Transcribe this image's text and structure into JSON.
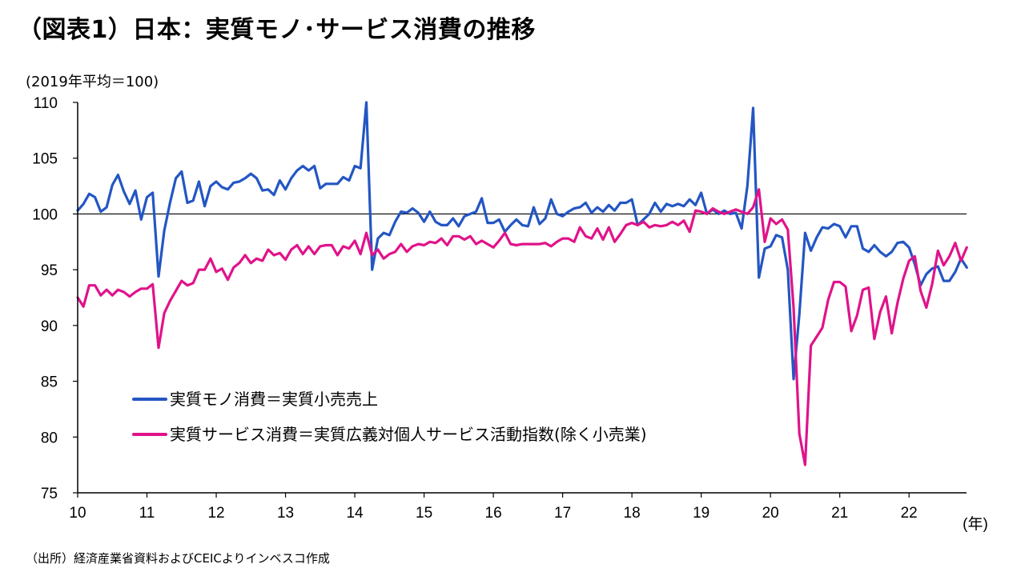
{
  "title": "（図表1）日本：実質モノ･サービス消費の推移",
  "unit_label": "(2019年平均＝100)",
  "source": "（出所）経済産業省資料およびCEICよりインベスコ作成",
  "colors": {
    "goods": "#2456c3",
    "services": "#e0138a",
    "reference": "#000000",
    "axis": "#000000"
  },
  "chart_data": {
    "type": "line",
    "title": "",
    "xlabel": "(年)",
    "ylabel": "(2019年平均＝100)",
    "ylim": [
      75,
      110
    ],
    "yticks": [
      110,
      105,
      100,
      95,
      90,
      85,
      80,
      75
    ],
    "xlim": [
      2010,
      2022.83
    ],
    "xticks": [
      {
        "x": 2010,
        "label": "10"
      },
      {
        "x": 2011,
        "label": "11"
      },
      {
        "x": 2012,
        "label": "12"
      },
      {
        "x": 2013,
        "label": "13"
      },
      {
        "x": 2014,
        "label": "14"
      },
      {
        "x": 2015,
        "label": "15"
      },
      {
        "x": 2016,
        "label": "16"
      },
      {
        "x": 2017,
        "label": "17"
      },
      {
        "x": 2018,
        "label": "18"
      },
      {
        "x": 2019,
        "label": "19"
      },
      {
        "x": 2020,
        "label": "20"
      },
      {
        "x": 2021,
        "label": "21"
      },
      {
        "x": 2022,
        "label": "22"
      }
    ],
    "reference_line": 100,
    "grid": false,
    "legend_position": "lower-left",
    "series": [
      {
        "name": "実質モノ消費＝実質小売売上",
        "color": "#2456c3",
        "x": [
          2010.0,
          2010.083,
          2010.167,
          2010.25,
          2010.333,
          2010.417,
          2010.5,
          2010.583,
          2010.667,
          2010.75,
          2010.833,
          2010.917,
          2011.0,
          2011.083,
          2011.167,
          2011.25,
          2011.333,
          2011.417,
          2011.5,
          2011.583,
          2011.667,
          2011.75,
          2011.833,
          2011.917,
          2012.0,
          2012.083,
          2012.167,
          2012.25,
          2012.333,
          2012.417,
          2012.5,
          2012.583,
          2012.667,
          2012.75,
          2012.833,
          2012.917,
          2013.0,
          2013.083,
          2013.167,
          2013.25,
          2013.333,
          2013.417,
          2013.5,
          2013.583,
          2013.667,
          2013.75,
          2013.833,
          2013.917,
          2014.0,
          2014.083,
          2014.167,
          2014.25,
          2014.333,
          2014.417,
          2014.5,
          2014.583,
          2014.667,
          2014.75,
          2014.833,
          2014.917,
          2015.0,
          2015.083,
          2015.167,
          2015.25,
          2015.333,
          2015.417,
          2015.5,
          2015.583,
          2015.667,
          2015.75,
          2015.833,
          2015.917,
          2016.0,
          2016.083,
          2016.167,
          2016.25,
          2016.333,
          2016.417,
          2016.5,
          2016.583,
          2016.667,
          2016.75,
          2016.833,
          2016.917,
          2017.0,
          2017.083,
          2017.167,
          2017.25,
          2017.333,
          2017.417,
          2017.5,
          2017.583,
          2017.667,
          2017.75,
          2017.833,
          2017.917,
          2018.0,
          2018.083,
          2018.167,
          2018.25,
          2018.333,
          2018.417,
          2018.5,
          2018.583,
          2018.667,
          2018.75,
          2018.833,
          2018.917,
          2019.0,
          2019.083,
          2019.167,
          2019.25,
          2019.333,
          2019.417,
          2019.5,
          2019.583,
          2019.667,
          2019.75,
          2019.833,
          2019.917,
          2020.0,
          2020.083,
          2020.167,
          2020.25,
          2020.333,
          2020.417,
          2020.5,
          2020.583,
          2020.667,
          2020.75,
          2020.833,
          2020.917,
          2021.0,
          2021.083,
          2021.167,
          2021.25,
          2021.333,
          2021.417,
          2021.5,
          2021.583,
          2021.667,
          2021.75,
          2021.833,
          2021.917,
          2022.0,
          2022.083,
          2022.167,
          2022.25,
          2022.333,
          2022.417,
          2022.5,
          2022.583,
          2022.667,
          2022.75,
          2022.833
        ],
        "y": [
          100.3,
          100.9,
          101.8,
          101.5,
          100.2,
          100.6,
          102.6,
          103.5,
          102.0,
          100.9,
          102.1,
          99.5,
          101.5,
          101.9,
          94.4,
          98.5,
          101.0,
          103.2,
          103.8,
          101.0,
          101.2,
          102.9,
          100.7,
          102.5,
          102.9,
          102.4,
          102.2,
          102.8,
          102.9,
          103.2,
          103.6,
          103.2,
          102.1,
          102.2,
          101.7,
          103.0,
          102.2,
          103.2,
          103.9,
          104.3,
          103.9,
          104.3,
          102.3,
          102.7,
          102.7,
          102.7,
          103.3,
          103.0,
          104.3,
          104.1,
          110.0,
          95.0,
          97.8,
          98.3,
          98.1,
          99.3,
          100.2,
          100.1,
          100.5,
          100.1,
          99.3,
          100.2,
          99.3,
          99.0,
          99.0,
          99.6,
          98.9,
          99.8,
          100.0,
          100.2,
          101.4,
          99.2,
          99.2,
          99.5,
          98.4,
          99.0,
          99.5,
          99.0,
          98.9,
          100.6,
          99.1,
          99.6,
          101.3,
          100.0,
          99.8,
          100.2,
          100.5,
          100.6,
          101.0,
          100.1,
          100.6,
          100.2,
          100.8,
          100.3,
          101.0,
          101.0,
          101.3,
          99.0,
          99.5,
          100.0,
          101.0,
          100.2,
          100.9,
          100.7,
          100.9,
          100.7,
          101.3,
          100.8,
          101.9,
          100.0,
          100.4,
          100.0,
          100.3,
          100.0,
          100.1,
          98.7,
          102.5,
          109.5,
          94.3,
          96.9,
          97.1,
          98.1,
          97.9,
          95.0,
          85.2,
          91.0,
          98.3,
          96.7,
          97.9,
          98.8,
          98.7,
          99.1,
          98.9,
          97.9,
          98.9,
          98.9,
          96.9,
          96.6,
          97.2,
          96.6,
          96.2,
          96.6,
          97.4,
          97.5,
          97.0,
          95.5,
          93.6,
          94.6,
          95.1,
          95.3,
          94.0,
          94.0,
          94.8,
          96.0,
          95.2
        ]
      },
      {
        "name": "実質サービス消費＝実質広義対個人サービス活動指数(除く小売業)",
        "color": "#e0138a",
        "x": [
          2010.0,
          2010.083,
          2010.167,
          2010.25,
          2010.333,
          2010.417,
          2010.5,
          2010.583,
          2010.667,
          2010.75,
          2010.833,
          2010.917,
          2011.0,
          2011.083,
          2011.167,
          2011.25,
          2011.333,
          2011.417,
          2011.5,
          2011.583,
          2011.667,
          2011.75,
          2011.833,
          2011.917,
          2012.0,
          2012.083,
          2012.167,
          2012.25,
          2012.333,
          2012.417,
          2012.5,
          2012.583,
          2012.667,
          2012.75,
          2012.833,
          2012.917,
          2013.0,
          2013.083,
          2013.167,
          2013.25,
          2013.333,
          2013.417,
          2013.5,
          2013.583,
          2013.667,
          2013.75,
          2013.833,
          2013.917,
          2014.0,
          2014.083,
          2014.167,
          2014.25,
          2014.333,
          2014.417,
          2014.5,
          2014.583,
          2014.667,
          2014.75,
          2014.833,
          2014.917,
          2015.0,
          2015.083,
          2015.167,
          2015.25,
          2015.333,
          2015.417,
          2015.5,
          2015.583,
          2015.667,
          2015.75,
          2015.833,
          2015.917,
          2016.0,
          2016.083,
          2016.167,
          2016.25,
          2016.333,
          2016.417,
          2016.5,
          2016.583,
          2016.667,
          2016.75,
          2016.833,
          2016.917,
          2017.0,
          2017.083,
          2017.167,
          2017.25,
          2017.333,
          2017.417,
          2017.5,
          2017.583,
          2017.667,
          2017.75,
          2017.833,
          2017.917,
          2018.0,
          2018.083,
          2018.167,
          2018.25,
          2018.333,
          2018.417,
          2018.5,
          2018.583,
          2018.667,
          2018.75,
          2018.833,
          2018.917,
          2019.0,
          2019.083,
          2019.167,
          2019.25,
          2019.333,
          2019.417,
          2019.5,
          2019.583,
          2019.667,
          2019.75,
          2019.833,
          2019.917,
          2020.0,
          2020.083,
          2020.167,
          2020.25,
          2020.333,
          2020.417,
          2020.5,
          2020.583,
          2020.667,
          2020.75,
          2020.833,
          2020.917,
          2021.0,
          2021.083,
          2021.167,
          2021.25,
          2021.333,
          2021.417,
          2021.5,
          2021.583,
          2021.667,
          2021.75,
          2021.833,
          2021.917,
          2022.0,
          2022.083,
          2022.167,
          2022.25,
          2022.333,
          2022.417,
          2022.5,
          2022.583,
          2022.667,
          2022.75,
          2022.833
        ],
        "y": [
          92.5,
          91.7,
          93.6,
          93.6,
          92.7,
          93.2,
          92.7,
          93.2,
          93.0,
          92.6,
          93.0,
          93.3,
          93.3,
          93.7,
          88.0,
          91.1,
          92.2,
          93.1,
          94.0,
          93.6,
          93.8,
          95.0,
          95.0,
          96.0,
          94.8,
          95.1,
          94.1,
          95.2,
          95.6,
          96.3,
          95.6,
          96.0,
          95.8,
          96.8,
          96.3,
          96.5,
          95.9,
          96.8,
          97.2,
          96.4,
          97.1,
          96.4,
          97.1,
          97.2,
          97.2,
          96.3,
          97.1,
          96.9,
          97.6,
          96.4,
          98.3,
          96.3,
          96.8,
          96.0,
          96.4,
          96.6,
          97.3,
          96.6,
          97.1,
          97.3,
          97.2,
          97.5,
          97.4,
          97.8,
          97.2,
          98.0,
          98.0,
          97.7,
          98.0,
          97.3,
          97.6,
          97.3,
          97.0,
          97.6,
          98.3,
          97.3,
          97.2,
          97.3,
          97.3,
          97.3,
          97.3,
          97.4,
          97.1,
          97.5,
          97.8,
          97.8,
          97.5,
          98.8,
          98.0,
          97.8,
          98.7,
          97.7,
          98.8,
          97.5,
          98.2,
          99.0,
          99.2,
          99.0,
          99.3,
          98.8,
          99.0,
          98.9,
          99.0,
          99.3,
          99.0,
          99.4,
          98.4,
          100.3,
          100.2,
          100.0,
          100.5,
          100.2,
          100.0,
          100.2,
          100.4,
          100.2,
          100.0,
          100.6,
          102.2,
          97.5,
          99.6,
          99.1,
          99.5,
          98.6,
          91.6,
          80.3,
          77.5,
          88.2,
          89.0,
          89.8,
          92.3,
          93.9,
          93.9,
          93.5,
          89.5,
          90.9,
          93.2,
          93.4,
          88.8,
          91.2,
          92.6,
          89.3,
          92.0,
          94.2,
          95.8,
          96.2,
          93.1,
          91.6,
          93.7,
          96.7,
          95.4,
          96.2,
          97.4,
          95.8,
          97.0
        ]
      }
    ]
  }
}
